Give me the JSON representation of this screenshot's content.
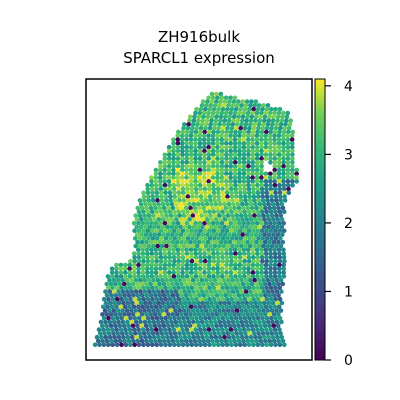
{
  "chart_data": {
    "type": "scatter",
    "title": "ZH916bulk",
    "subtitle": "SPARCL1 expression",
    "xlabel": "",
    "ylabel": "",
    "colormap": "viridis",
    "colorbar": {
      "vmin": 0,
      "vmax": 4.1,
      "ticks": [
        "0",
        "1",
        "2",
        "3",
        "4"
      ]
    },
    "grid": false,
    "legend": "none"
  }
}
